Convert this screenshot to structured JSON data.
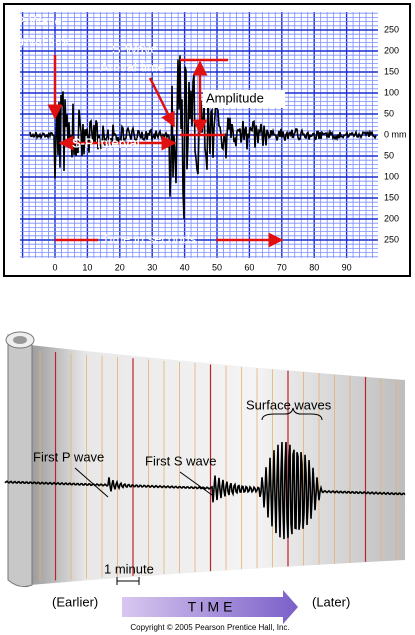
{
  "seismogram": {
    "labels": {
      "p_wave": "P-Wave",
      "p_arrival": "Arrival time",
      "s_wave": "S-Wave",
      "s_arrival": "Arrival time",
      "amplitude": "Amplitude",
      "sp_interval": "S-P Interval",
      "time": "Time in seconds"
    },
    "y_ticks": [
      "250",
      "200",
      "150",
      "100",
      "50",
      "0 mm",
      "50",
      "100",
      "150",
      "200",
      "250"
    ],
    "x_ticks": [
      "0",
      "10",
      "20",
      "30",
      "40",
      "50",
      "60",
      "70",
      "80",
      "90"
    ]
  },
  "drum": {
    "surface_waves": "Surface waves",
    "first_p": "First P wave",
    "first_s": "First S wave",
    "minute": "1 minute",
    "earlier": "(Earlier)",
    "time": "T I M E",
    "later": "(Later)",
    "copyright": "Copyright © 2005 Pearson Prentice Hall, Inc."
  }
}
